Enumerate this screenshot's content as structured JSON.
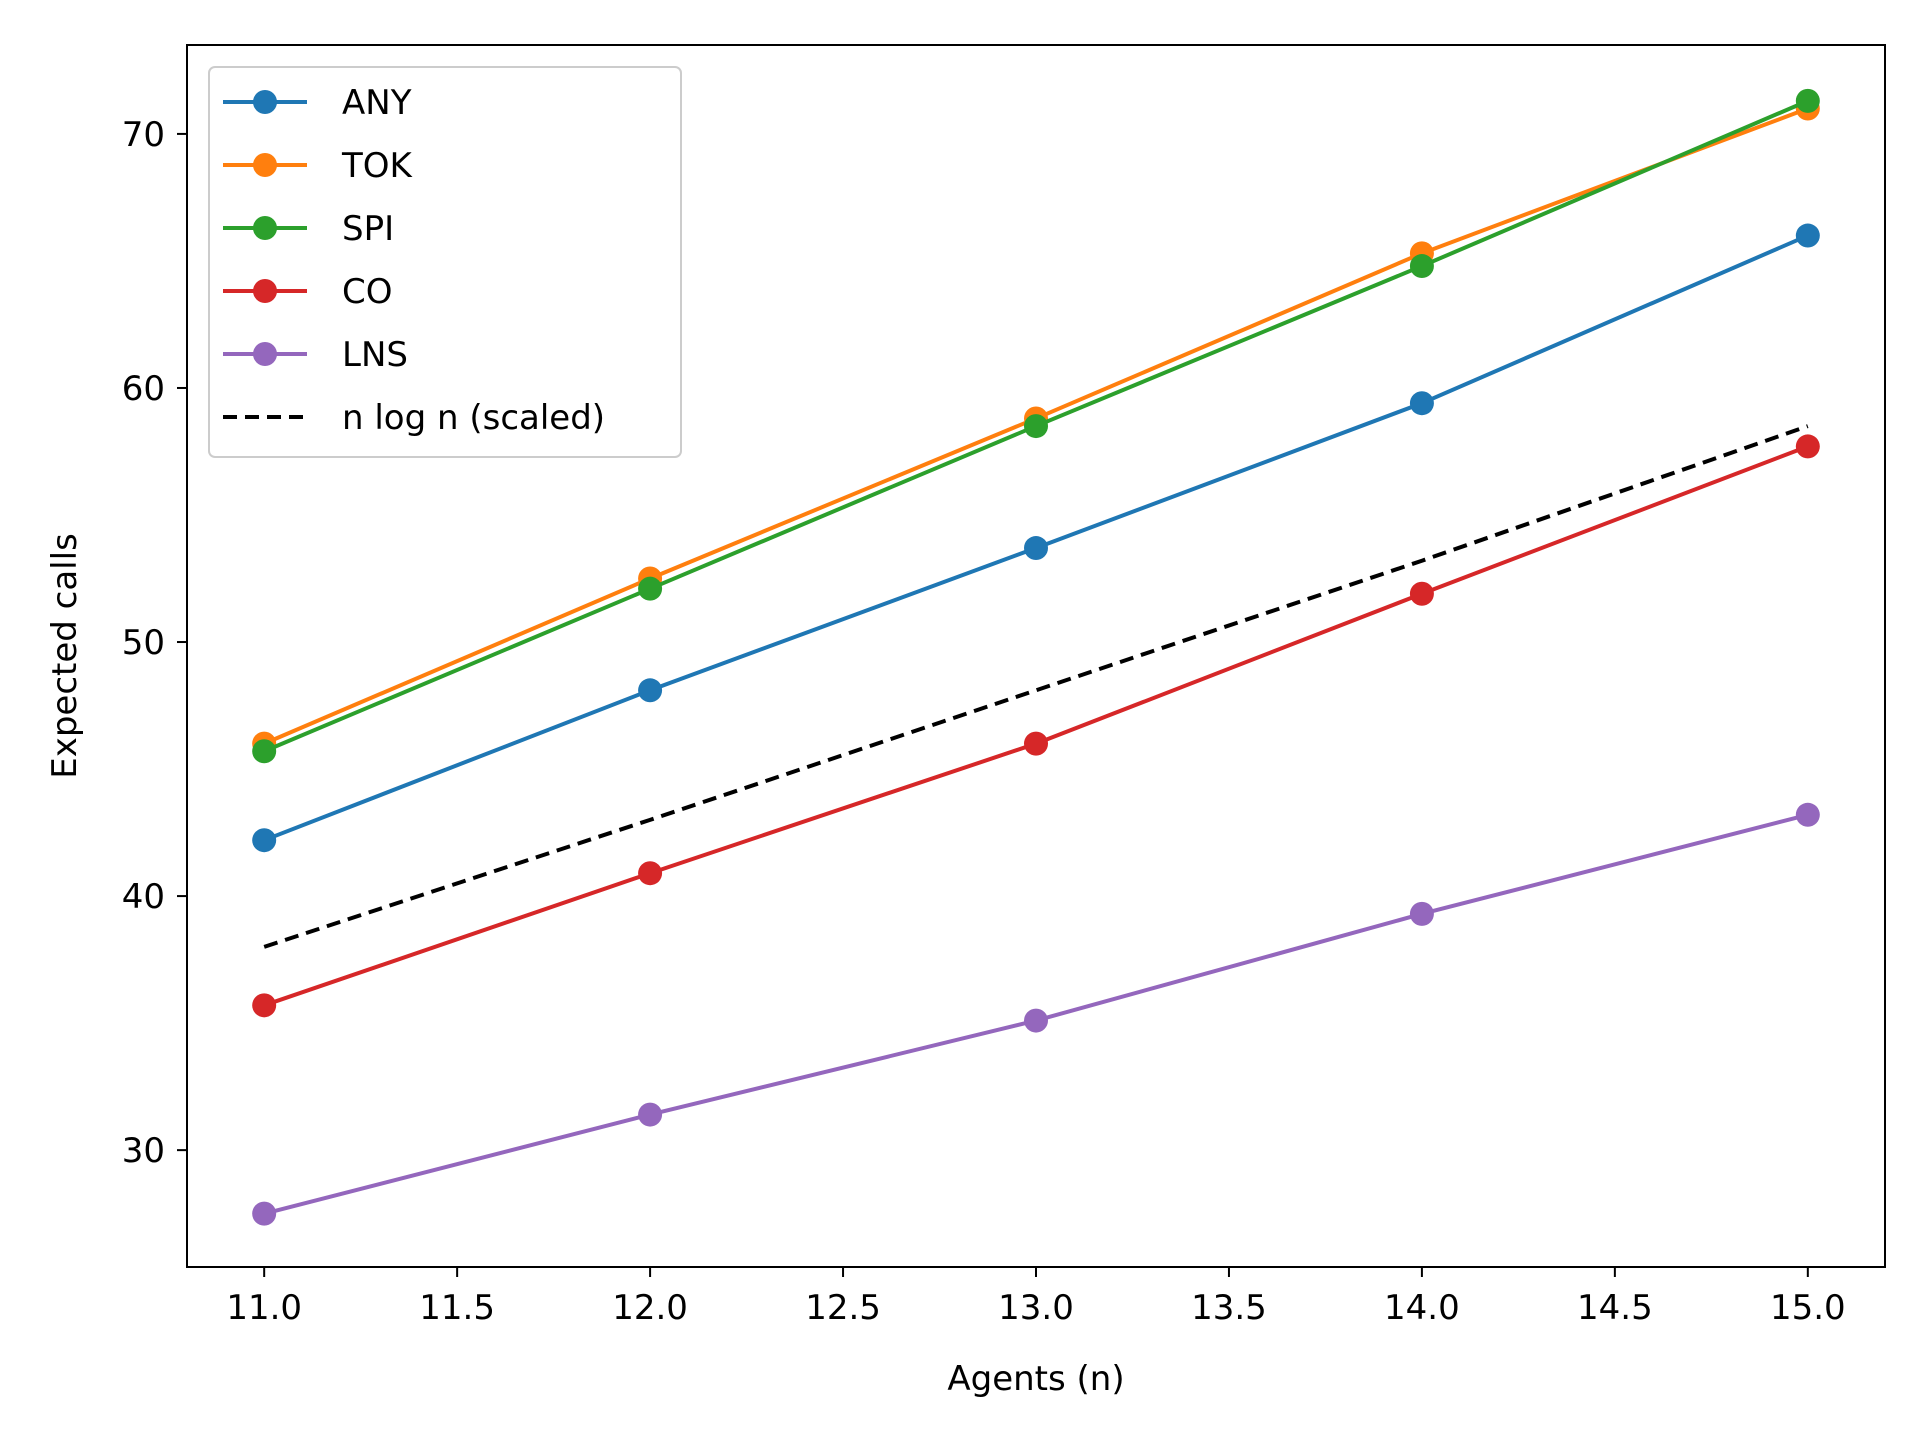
{
  "chart_data": {
    "type": "line",
    "xlabel": "Agents (n)",
    "ylabel": "Expected calls",
    "xlim": [
      10.8,
      15.2
    ],
    "ylim": [
      25.4,
      73.5
    ],
    "xticks": [
      11.0,
      11.5,
      12.0,
      12.5,
      13.0,
      13.5,
      14.0,
      14.5,
      15.0
    ],
    "xtick_labels": [
      "11.0",
      "11.5",
      "12.0",
      "12.5",
      "13.0",
      "13.5",
      "14.0",
      "14.5",
      "15.0"
    ],
    "yticks": [
      30,
      40,
      50,
      60,
      70
    ],
    "ytick_labels": [
      "30",
      "40",
      "50",
      "60",
      "70"
    ],
    "grid": false,
    "legend_position": "top-left",
    "x": [
      11,
      12,
      13,
      14,
      15
    ],
    "series": [
      {
        "name": "ANY",
        "color": "#1f77b4",
        "style": "solid",
        "marker": "circle",
        "values": [
          42.2,
          48.1,
          53.7,
          59.4,
          66.0
        ]
      },
      {
        "name": "TOK",
        "color": "#ff7f0e",
        "style": "solid",
        "marker": "circle",
        "values": [
          46.0,
          52.5,
          58.8,
          65.3,
          71.0
        ]
      },
      {
        "name": "SPI",
        "color": "#2ca02c",
        "style": "solid",
        "marker": "circle",
        "values": [
          45.7,
          52.1,
          58.5,
          64.8,
          71.3
        ]
      },
      {
        "name": "CO",
        "color": "#d62728",
        "style": "solid",
        "marker": "circle",
        "values": [
          35.7,
          40.9,
          46.0,
          51.9,
          57.7
        ]
      },
      {
        "name": "LNS",
        "color": "#9467bd",
        "style": "solid",
        "marker": "circle",
        "values": [
          27.5,
          31.4,
          35.1,
          39.3,
          43.2
        ]
      },
      {
        "name": "n log n (scaled)",
        "color": "#000000",
        "style": "dashed",
        "marker": "none",
        "values": [
          38.0,
          43.0,
          48.1,
          53.2,
          58.5
        ]
      }
    ]
  }
}
